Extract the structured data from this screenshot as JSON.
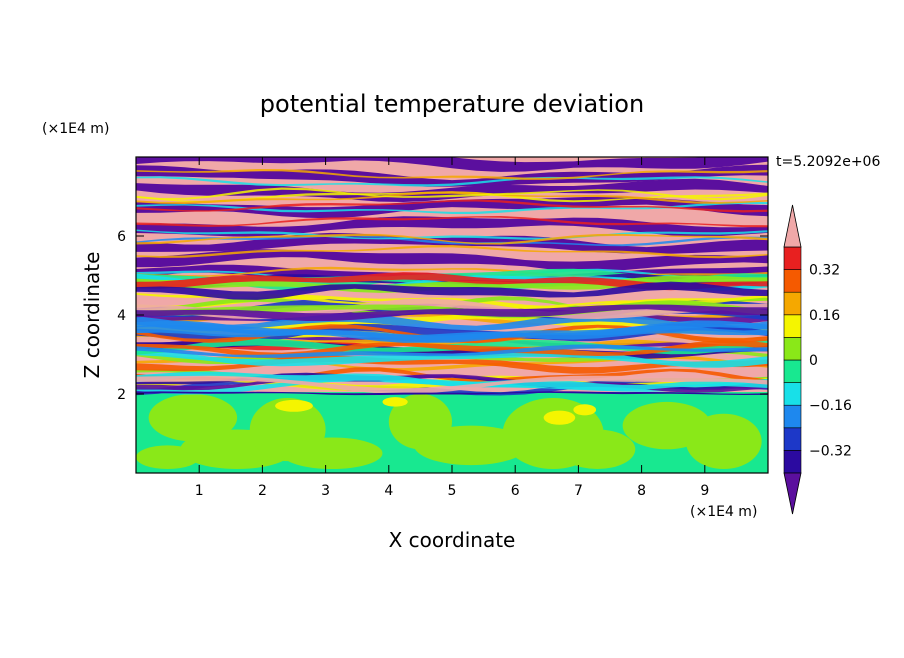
{
  "chart_data": {
    "type": "heatmap",
    "title": "potential temperature deviation",
    "xlabel": "X coordinate",
    "ylabel": "Z coordinate",
    "x_unit": "(×1E4 m)",
    "y_unit": "(×1E4 m)",
    "time_label": "t=5.2092e+06",
    "xlim": [
      0,
      10
    ],
    "ylim": [
      0,
      8
    ],
    "x_ticks": [
      "1",
      "2",
      "3",
      "4",
      "5",
      "6",
      "7",
      "8",
      "9"
    ],
    "y_ticks": [
      "2",
      "4",
      "6"
    ],
    "colorbar": {
      "levels": [
        -0.4,
        -0.32,
        -0.24,
        -0.16,
        -0.08,
        0,
        0.08,
        0.16,
        0.24,
        0.32,
        0.4
      ],
      "labels": [
        "0.32",
        "0.16",
        "0",
        "−0.16",
        "−0.32"
      ],
      "colors_low_to_high": [
        "#5b0f9e",
        "#2b0aa0",
        "#1d38c8",
        "#1e88ee",
        "#18e0e8",
        "#18e890",
        "#8ae818",
        "#f5f500",
        "#f5a800",
        "#f55a00",
        "#e82020",
        "#f0a8a8"
      ]
    },
    "regions": {
      "lower_layer": "weak positive deviation 0 to 0.16 (greens/yellow-green)",
      "upper_layer": "horizontally banded alternating extremes (pink above 0.4, purple below -0.4)"
    }
  }
}
